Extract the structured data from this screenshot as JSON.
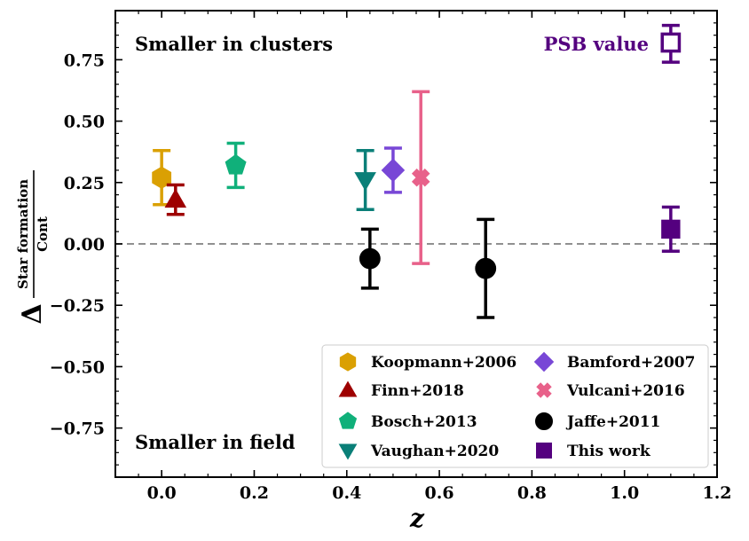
{
  "chart_data": {
    "type": "scatter",
    "title": "",
    "xlabel": "z",
    "ylabel": {
      "prefix": "Δ",
      "numerator": "Star formation",
      "denominator": "Cont"
    },
    "xlim": [
      -0.1,
      1.2
    ],
    "ylim": [
      -0.95,
      0.95
    ],
    "x_ticks": [
      "0.0",
      "0.2",
      "0.4",
      "0.6",
      "0.8",
      "1.0",
      "1.2"
    ],
    "y_ticks": [
      "0.75",
      "0.50",
      "0.25",
      "0.00",
      "−0.25",
      "−0.50",
      "−0.75"
    ],
    "reference_line": {
      "y": 0.0,
      "style": "dashed",
      "color": "#808080"
    },
    "annotations": {
      "top_left": "Smaller in clusters",
      "bottom_left": "Smaller in field",
      "psb_label": "PSB value"
    },
    "legend_placement": "lower-right",
    "series": [
      {
        "name": "Koopmann+2006",
        "marker": "hexagon",
        "color": "#DAA003",
        "points": [
          {
            "x": 0.0,
            "y": 0.27,
            "ylo": 0.16,
            "yhi": 0.38
          }
        ]
      },
      {
        "name": "Finn+2018",
        "marker": "triangle-up",
        "color": "#9E0000",
        "points": [
          {
            "x": 0.03,
            "y": 0.18,
            "ylo": 0.12,
            "yhi": 0.24
          }
        ]
      },
      {
        "name": "Bosch+2013",
        "marker": "pentagon",
        "color": "#10B07A",
        "points": [
          {
            "x": 0.16,
            "y": 0.32,
            "ylo": 0.23,
            "yhi": 0.41
          }
        ]
      },
      {
        "name": "Vaughan+2020",
        "marker": "triangle-down",
        "color": "#0A7F78",
        "points": [
          {
            "x": 0.44,
            "y": 0.26,
            "ylo": 0.14,
            "yhi": 0.38
          }
        ]
      },
      {
        "name": "Bamford+2007",
        "marker": "diamond",
        "color": "#7847D6",
        "points": [
          {
            "x": 0.5,
            "y": 0.3,
            "ylo": 0.21,
            "yhi": 0.39
          }
        ]
      },
      {
        "name": "Vulcani+2016",
        "marker": "x",
        "color": "#E8618A",
        "points": [
          {
            "x": 0.56,
            "y": 0.27,
            "ylo": -0.08,
            "yhi": 0.62
          }
        ]
      },
      {
        "name": "Jaffe+2011",
        "marker": "circle",
        "color": "#000000",
        "points": [
          {
            "x": 0.45,
            "y": -0.06,
            "ylo": -0.18,
            "yhi": 0.06
          },
          {
            "x": 0.7,
            "y": -0.1,
            "ylo": -0.3,
            "yhi": 0.1
          }
        ]
      },
      {
        "name": "This work",
        "marker": "square",
        "color": "#54007F",
        "points": [
          {
            "x": 1.1,
            "y": 0.06,
            "ylo": -0.03,
            "yhi": 0.15
          }
        ]
      },
      {
        "name": "PSB value",
        "marker": "square-open",
        "color": "#54007F",
        "in_legend": false,
        "points": [
          {
            "x": 1.1,
            "y": 0.82,
            "ylo": 0.74,
            "yhi": 0.89
          }
        ]
      }
    ]
  }
}
